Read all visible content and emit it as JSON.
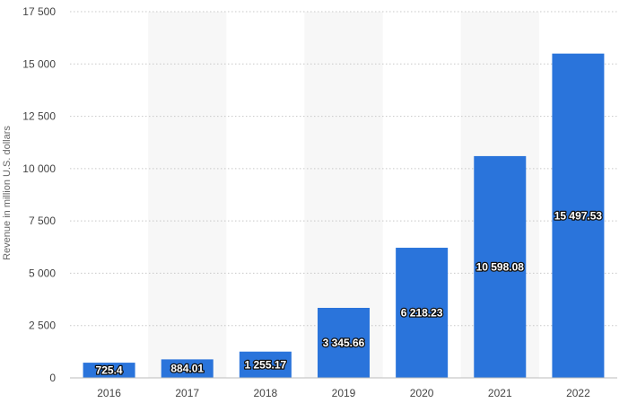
{
  "chart_data": {
    "type": "bar",
    "categories": [
      "2016",
      "2017",
      "2018",
      "2019",
      "2020",
      "2021",
      "2022"
    ],
    "values": [
      725.4,
      884.01,
      1255.17,
      3345.66,
      6218.23,
      10598.08,
      15497.53
    ],
    "data_labels": [
      "725.4",
      "884.01",
      "1 255.17",
      "3 345.66",
      "6 218.23",
      "10 598.08",
      "15 497.53"
    ],
    "title": "",
    "xlabel": "",
    "ylabel": "Revenue in million U.S. dollars",
    "ylim": [
      0,
      17500
    ],
    "yticks": [
      0,
      2500,
      5000,
      7500,
      10000,
      12500,
      15000,
      17500
    ],
    "ytick_labels": [
      "0",
      "2 500",
      "5 000",
      "7 500",
      "10 000",
      "12 500",
      "15 000",
      "17 500"
    ],
    "grid": true,
    "bar_color": "#2a74db",
    "alt_band_color": "#f7f7f7"
  }
}
